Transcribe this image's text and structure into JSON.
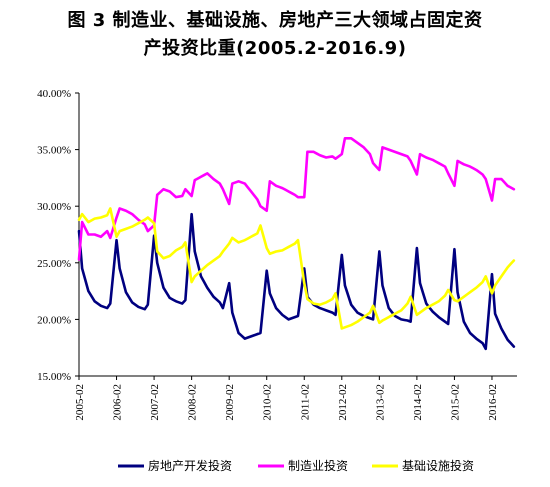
{
  "title_line1": "图 3  制造业、基础设施、房地产三大领域占固定资",
  "title_line2": "产投资比重(2005.2-2016.9)",
  "chart_data": {
    "type": "line",
    "title": "图 3  制造业、基础设施、房地产三大领域占固定资产投资比重(2005.2-2016.9)",
    "xlabel": "",
    "ylabel": "",
    "x_ticks": [
      "2005-02",
      "2006-02",
      "2007-02",
      "2008-02",
      "2009-02",
      "2010-02",
      "2011-02",
      "2012-02",
      "2013-02",
      "2014-02",
      "2015-02",
      "2016-02"
    ],
    "y_ticks": [
      "15.00%",
      "20.00%",
      "25.00%",
      "30.00%",
      "35.00%",
      "40.00%"
    ],
    "ylim": [
      15,
      40
    ],
    "x_range": [
      "2005-02",
      "2016-09"
    ],
    "grid": false,
    "legend_position": "bottom",
    "series": [
      {
        "name": "房地产开发投资",
        "color": "#000080",
        "points": [
          [
            "2005-02",
            27.8
          ],
          [
            "2005-03",
            24.5
          ],
          [
            "2005-05",
            22.5
          ],
          [
            "2005-07",
            21.6
          ],
          [
            "2005-09",
            21.2
          ],
          [
            "2005-11",
            21.0
          ],
          [
            "2005-12",
            21.4
          ],
          [
            "2006-02",
            27.0
          ],
          [
            "2006-03",
            24.5
          ],
          [
            "2006-05",
            22.4
          ],
          [
            "2006-07",
            21.5
          ],
          [
            "2006-09",
            21.1
          ],
          [
            "2006-11",
            20.9
          ],
          [
            "2006-12",
            21.3
          ],
          [
            "2007-02",
            27.4
          ],
          [
            "2007-03",
            25.0
          ],
          [
            "2007-05",
            22.8
          ],
          [
            "2007-07",
            21.9
          ],
          [
            "2007-09",
            21.6
          ],
          [
            "2007-11",
            21.4
          ],
          [
            "2007-12",
            21.7
          ],
          [
            "2008-02",
            29.3
          ],
          [
            "2008-03",
            26.0
          ],
          [
            "2008-05",
            23.8
          ],
          [
            "2008-07",
            22.8
          ],
          [
            "2008-09",
            22.0
          ],
          [
            "2008-11",
            21.5
          ],
          [
            "2008-12",
            21.0
          ],
          [
            "2009-02",
            23.2
          ],
          [
            "2009-03",
            20.6
          ],
          [
            "2009-05",
            18.8
          ],
          [
            "2009-07",
            18.3
          ],
          [
            "2009-09",
            18.5
          ],
          [
            "2009-11",
            18.7
          ],
          [
            "2009-12",
            18.8
          ],
          [
            "2010-02",
            24.3
          ],
          [
            "2010-03",
            22.3
          ],
          [
            "2010-05",
            21.0
          ],
          [
            "2010-07",
            20.4
          ],
          [
            "2010-09",
            20.0
          ],
          [
            "2010-11",
            20.2
          ],
          [
            "2010-12",
            20.3
          ],
          [
            "2011-02",
            24.5
          ],
          [
            "2011-03",
            22.0
          ],
          [
            "2011-05",
            21.3
          ],
          [
            "2011-07",
            21.0
          ],
          [
            "2011-09",
            20.8
          ],
          [
            "2011-11",
            20.6
          ],
          [
            "2011-12",
            20.4
          ],
          [
            "2012-02",
            25.7
          ],
          [
            "2012-03",
            23.0
          ],
          [
            "2012-05",
            21.3
          ],
          [
            "2012-07",
            20.6
          ],
          [
            "2012-09",
            20.3
          ],
          [
            "2012-11",
            20.1
          ],
          [
            "2012-12",
            20.0
          ],
          [
            "2013-02",
            26.0
          ],
          [
            "2013-03",
            23.0
          ],
          [
            "2013-05",
            21.0
          ],
          [
            "2013-07",
            20.3
          ],
          [
            "2013-09",
            20.0
          ],
          [
            "2013-11",
            19.9
          ],
          [
            "2013-12",
            19.8
          ],
          [
            "2014-02",
            26.3
          ],
          [
            "2014-03",
            23.2
          ],
          [
            "2014-05",
            21.4
          ],
          [
            "2014-07",
            20.7
          ],
          [
            "2014-09",
            20.2
          ],
          [
            "2014-11",
            19.8
          ],
          [
            "2014-12",
            19.6
          ],
          [
            "2015-02",
            26.2
          ],
          [
            "2015-03",
            22.4
          ],
          [
            "2015-05",
            19.8
          ],
          [
            "2015-07",
            18.8
          ],
          [
            "2015-09",
            18.3
          ],
          [
            "2015-11",
            17.9
          ],
          [
            "2015-12",
            17.4
          ],
          [
            "2016-02",
            24.0
          ],
          [
            "2016-03",
            20.5
          ],
          [
            "2016-05",
            19.2
          ],
          [
            "2016-07",
            18.2
          ],
          [
            "2016-09",
            17.6
          ]
        ]
      },
      {
        "name": "制造业投资",
        "color": "#FF00FF",
        "points": [
          [
            "2005-02",
            25.3
          ],
          [
            "2005-03",
            28.6
          ],
          [
            "2005-05",
            27.5
          ],
          [
            "2005-07",
            27.5
          ],
          [
            "2005-09",
            27.3
          ],
          [
            "2005-11",
            27.8
          ],
          [
            "2005-12",
            27.2
          ],
          [
            "2006-02",
            29.0
          ],
          [
            "2006-03",
            29.8
          ],
          [
            "2006-05",
            29.6
          ],
          [
            "2006-07",
            29.3
          ],
          [
            "2006-09",
            28.8
          ],
          [
            "2006-11",
            28.4
          ],
          [
            "2006-12",
            27.8
          ],
          [
            "2007-02",
            28.3
          ],
          [
            "2007-03",
            31.0
          ],
          [
            "2007-05",
            31.5
          ],
          [
            "2007-07",
            31.3
          ],
          [
            "2007-09",
            30.8
          ],
          [
            "2007-11",
            30.9
          ],
          [
            "2007-12",
            31.5
          ],
          [
            "2008-02",
            30.9
          ],
          [
            "2008-03",
            32.3
          ],
          [
            "2008-05",
            32.6
          ],
          [
            "2008-07",
            32.9
          ],
          [
            "2008-09",
            32.4
          ],
          [
            "2008-11",
            32.0
          ],
          [
            "2008-12",
            31.5
          ],
          [
            "2009-02",
            30.2
          ],
          [
            "2009-03",
            32.0
          ],
          [
            "2009-05",
            32.2
          ],
          [
            "2009-07",
            32.0
          ],
          [
            "2009-09",
            31.3
          ],
          [
            "2009-11",
            30.6
          ],
          [
            "2009-12",
            30.0
          ],
          [
            "2010-02",
            29.6
          ],
          [
            "2010-03",
            32.2
          ],
          [
            "2010-05",
            31.8
          ],
          [
            "2010-07",
            31.6
          ],
          [
            "2010-09",
            31.3
          ],
          [
            "2010-11",
            31.0
          ],
          [
            "2010-12",
            30.8
          ],
          [
            "2011-02",
            30.8
          ],
          [
            "2011-03",
            34.8
          ],
          [
            "2011-05",
            34.8
          ],
          [
            "2011-07",
            34.5
          ],
          [
            "2011-09",
            34.3
          ],
          [
            "2011-11",
            34.4
          ],
          [
            "2011-12",
            34.2
          ],
          [
            "2012-02",
            34.6
          ],
          [
            "2012-03",
            36.0
          ],
          [
            "2012-05",
            36.0
          ],
          [
            "2012-07",
            35.6
          ],
          [
            "2012-09",
            35.2
          ],
          [
            "2012-11",
            34.6
          ],
          [
            "2012-12",
            33.8
          ],
          [
            "2013-02",
            33.2
          ],
          [
            "2013-03",
            35.2
          ],
          [
            "2013-05",
            35.0
          ],
          [
            "2013-07",
            34.8
          ],
          [
            "2013-09",
            34.6
          ],
          [
            "2013-11",
            34.4
          ],
          [
            "2013-12",
            34.0
          ],
          [
            "2014-02",
            32.8
          ],
          [
            "2014-03",
            34.6
          ],
          [
            "2014-05",
            34.3
          ],
          [
            "2014-07",
            34.1
          ],
          [
            "2014-09",
            33.8
          ],
          [
            "2014-11",
            33.5
          ],
          [
            "2014-12",
            32.9
          ],
          [
            "2015-02",
            31.8
          ],
          [
            "2015-03",
            34.0
          ],
          [
            "2015-05",
            33.7
          ],
          [
            "2015-07",
            33.5
          ],
          [
            "2015-09",
            33.2
          ],
          [
            "2015-11",
            32.8
          ],
          [
            "2015-12",
            32.4
          ],
          [
            "2016-02",
            30.5
          ],
          [
            "2016-03",
            32.4
          ],
          [
            "2016-05",
            32.4
          ],
          [
            "2016-07",
            31.8
          ],
          [
            "2016-09",
            31.5
          ]
        ]
      },
      {
        "name": "基础设施投资",
        "color": "#FFFF00",
        "points": [
          [
            "2005-02",
            28.8
          ],
          [
            "2005-03",
            29.3
          ],
          [
            "2005-05",
            28.6
          ],
          [
            "2005-07",
            28.9
          ],
          [
            "2005-09",
            29.0
          ],
          [
            "2005-11",
            29.2
          ],
          [
            "2005-12",
            29.8
          ],
          [
            "2006-02",
            27.3
          ],
          [
            "2006-03",
            27.8
          ],
          [
            "2006-05",
            28.0
          ],
          [
            "2006-07",
            28.2
          ],
          [
            "2006-09",
            28.5
          ],
          [
            "2006-11",
            28.8
          ],
          [
            "2006-12",
            29.0
          ],
          [
            "2007-02",
            28.5
          ],
          [
            "2007-03",
            26.0
          ],
          [
            "2007-05",
            25.4
          ],
          [
            "2007-07",
            25.6
          ],
          [
            "2007-09",
            26.1
          ],
          [
            "2007-11",
            26.4
          ],
          [
            "2007-12",
            26.8
          ],
          [
            "2008-02",
            23.3
          ],
          [
            "2008-03",
            23.8
          ],
          [
            "2008-05",
            24.3
          ],
          [
            "2008-07",
            24.8
          ],
          [
            "2008-09",
            25.2
          ],
          [
            "2008-11",
            25.6
          ],
          [
            "2008-12",
            26.0
          ],
          [
            "2009-02",
            26.7
          ],
          [
            "2009-03",
            27.2
          ],
          [
            "2009-05",
            26.8
          ],
          [
            "2009-07",
            27.0
          ],
          [
            "2009-09",
            27.3
          ],
          [
            "2009-11",
            27.6
          ],
          [
            "2009-12",
            28.3
          ],
          [
            "2010-02",
            26.3
          ],
          [
            "2010-03",
            25.8
          ],
          [
            "2010-05",
            26.0
          ],
          [
            "2010-07",
            26.1
          ],
          [
            "2010-09",
            26.4
          ],
          [
            "2010-11",
            26.7
          ],
          [
            "2010-12",
            27.0
          ],
          [
            "2011-02",
            23.2
          ],
          [
            "2011-03",
            21.8
          ],
          [
            "2011-05",
            21.4
          ],
          [
            "2011-07",
            21.3
          ],
          [
            "2011-09",
            21.5
          ],
          [
            "2011-11",
            21.8
          ],
          [
            "2011-12",
            22.3
          ],
          [
            "2012-02",
            19.2
          ],
          [
            "2012-03",
            19.3
          ],
          [
            "2012-05",
            19.5
          ],
          [
            "2012-07",
            19.8
          ],
          [
            "2012-09",
            20.2
          ],
          [
            "2012-11",
            20.6
          ],
          [
            "2012-12",
            21.2
          ],
          [
            "2013-02",
            19.7
          ],
          [
            "2013-03",
            19.9
          ],
          [
            "2013-05",
            20.2
          ],
          [
            "2013-07",
            20.5
          ],
          [
            "2013-09",
            20.8
          ],
          [
            "2013-11",
            21.4
          ],
          [
            "2013-12",
            22.0
          ],
          [
            "2014-02",
            20.4
          ],
          [
            "2014-03",
            20.6
          ],
          [
            "2014-05",
            21.0
          ],
          [
            "2014-07",
            21.3
          ],
          [
            "2014-09",
            21.6
          ],
          [
            "2014-11",
            22.1
          ],
          [
            "2014-12",
            22.6
          ],
          [
            "2015-02",
            21.7
          ],
          [
            "2015-03",
            21.6
          ],
          [
            "2015-05",
            22.0
          ],
          [
            "2015-07",
            22.4
          ],
          [
            "2015-09",
            22.8
          ],
          [
            "2015-11",
            23.3
          ],
          [
            "2015-12",
            23.8
          ],
          [
            "2016-02",
            22.3
          ],
          [
            "2016-03",
            23.0
          ],
          [
            "2016-05",
            23.8
          ],
          [
            "2016-07",
            24.6
          ],
          [
            "2016-09",
            25.2
          ]
        ]
      }
    ]
  }
}
